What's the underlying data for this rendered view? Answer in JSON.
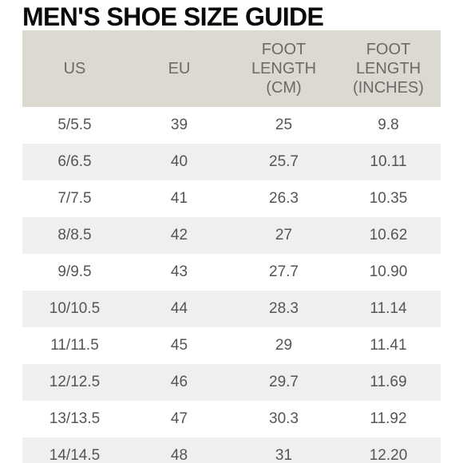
{
  "title": "MEN'S SHOE SIZE GUIDE",
  "colors": {
    "header_bg": "#dcd9d1",
    "alt_row_bg": "#efefef",
    "text": "#555555",
    "title": "#0a0a0a"
  },
  "table": {
    "headers": [
      [
        "US"
      ],
      [
        "EU"
      ],
      [
        "FOOT",
        "LENGTH",
        "(CM)"
      ],
      [
        "FOOT",
        "LENGTH",
        "(INCHES)"
      ]
    ],
    "rows": [
      [
        "5/5.5",
        "39",
        "25",
        "9.8"
      ],
      [
        "6/6.5",
        "40",
        "25.7",
        "10.11"
      ],
      [
        "7/7.5",
        "41",
        "26.3",
        "10.35"
      ],
      [
        "8/8.5",
        "42",
        "27",
        "10.62"
      ],
      [
        "9/9.5",
        "43",
        "27.7",
        "10.90"
      ],
      [
        "10/10.5",
        "44",
        "28.3",
        "11.14"
      ],
      [
        "11/11.5",
        "45",
        "29",
        "11.41"
      ],
      [
        "12/12.5",
        "46",
        "29.7",
        "11.69"
      ],
      [
        "13/13.5",
        "47",
        "30.3",
        "11.92"
      ],
      [
        "14/14.5",
        "48",
        "31",
        "12.20"
      ]
    ]
  }
}
